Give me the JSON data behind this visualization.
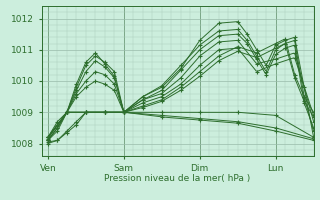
{
  "background_color": "#cceedd",
  "grid_color_minor": "#aaccbb",
  "grid_color_major": "#99bbaa",
  "line_color": "#2d6e2d",
  "xlabel": "Pression niveau de la mer( hPa )",
  "xtick_labels": [
    "Ven",
    "Sam",
    "Dim",
    "Lun"
  ],
  "xtick_positions": [
    0,
    24,
    48,
    72
  ],
  "ylim": [
    1007.6,
    1012.4
  ],
  "ytick_positions": [
    1008,
    1009,
    1010,
    1011,
    1012
  ],
  "xlim": [
    -2,
    84
  ],
  "line_width": 0.7,
  "marker": "+",
  "marker_size": 3.5,
  "lines": [
    {
      "x": [
        0,
        3,
        6,
        9,
        12,
        15,
        18,
        21,
        24,
        30,
        36,
        42,
        48,
        54,
        60,
        63,
        66,
        69,
        72,
        75,
        78,
        81,
        84
      ],
      "y": [
        1008.2,
        1008.6,
        1009.0,
        1009.8,
        1010.5,
        1010.8,
        1010.6,
        1010.3,
        1009.0,
        1009.5,
        1009.8,
        1010.4,
        1011.3,
        1011.85,
        1011.9,
        1011.5,
        1011.0,
        1010.5,
        1011.15,
        1011.3,
        1011.4,
        1009.8,
        1008.2
      ]
    },
    {
      "x": [
        0,
        3,
        6,
        9,
        12,
        15,
        18,
        21,
        24,
        30,
        36,
        42,
        48,
        54,
        60,
        63,
        66,
        69,
        72,
        75,
        78,
        81,
        84
      ],
      "y": [
        1008.2,
        1008.7,
        1009.0,
        1009.9,
        1010.6,
        1010.9,
        1010.55,
        1010.15,
        1009.0,
        1009.5,
        1009.85,
        1010.5,
        1011.15,
        1011.6,
        1011.65,
        1011.3,
        1010.8,
        1010.3,
        1011.0,
        1011.2,
        1011.3,
        1009.5,
        1008.4
      ]
    },
    {
      "x": [
        0,
        3,
        6,
        9,
        12,
        15,
        18,
        21,
        24,
        30,
        36,
        42,
        48,
        54,
        60,
        63,
        66,
        69,
        72,
        75,
        78,
        81,
        84
      ],
      "y": [
        1008.1,
        1008.5,
        1009.0,
        1009.7,
        1010.3,
        1010.65,
        1010.45,
        1010.1,
        1009.0,
        1009.4,
        1009.7,
        1010.35,
        1011.0,
        1011.45,
        1011.5,
        1011.2,
        1010.7,
        1010.2,
        1010.85,
        1011.05,
        1011.15,
        1009.3,
        1008.5
      ]
    },
    {
      "x": [
        0,
        3,
        6,
        9,
        12,
        15,
        18,
        21,
        24,
        30,
        36,
        42,
        48,
        54,
        60,
        66,
        72,
        78,
        84
      ],
      "y": [
        1008.1,
        1008.5,
        1009.0,
        1009.6,
        1010.0,
        1010.3,
        1010.2,
        1009.9,
        1009.0,
        1009.4,
        1009.6,
        1010.1,
        1010.8,
        1011.25,
        1011.3,
        1010.55,
        1010.7,
        1010.9,
        1008.7
      ]
    },
    {
      "x": [
        0,
        3,
        6,
        9,
        12,
        15,
        18,
        21,
        24,
        30,
        36,
        42,
        48,
        54,
        60,
        66,
        72,
        78,
        84
      ],
      "y": [
        1008.1,
        1008.4,
        1009.0,
        1009.5,
        1009.8,
        1010.0,
        1009.9,
        1009.7,
        1009.0,
        1009.3,
        1009.5,
        1009.9,
        1010.5,
        1011.0,
        1011.05,
        1010.3,
        1010.55,
        1010.75,
        1008.9
      ]
    },
    {
      "x": [
        0,
        6,
        12,
        18,
        24,
        36,
        48,
        60,
        72,
        84
      ],
      "y": [
        1008.2,
        1009.0,
        1009.0,
        1009.0,
        1009.0,
        1009.0,
        1009.0,
        1009.0,
        1008.9,
        1008.2
      ]
    },
    {
      "x": [
        0,
        6,
        12,
        18,
        24,
        36,
        48,
        60,
        72,
        84
      ],
      "y": [
        1008.2,
        1009.0,
        1009.0,
        1009.0,
        1009.0,
        1008.9,
        1008.8,
        1008.7,
        1008.5,
        1008.15
      ]
    },
    {
      "x": [
        0,
        6,
        12,
        18,
        24,
        36,
        48,
        60,
        72,
        84
      ],
      "y": [
        1008.15,
        1009.0,
        1009.0,
        1009.0,
        1009.0,
        1008.85,
        1008.75,
        1008.65,
        1008.4,
        1008.1
      ]
    },
    {
      "x": [
        0,
        3,
        6,
        9,
        12,
        18,
        24,
        30,
        36,
        42,
        48,
        54,
        60,
        66,
        72,
        75,
        78,
        81,
        84
      ],
      "y": [
        1008.0,
        1008.1,
        1008.4,
        1008.7,
        1009.0,
        1009.0,
        1009.0,
        1009.2,
        1009.4,
        1009.8,
        1010.3,
        1010.8,
        1011.1,
        1010.9,
        1011.2,
        1011.35,
        1010.2,
        1009.5,
        1009.0
      ]
    },
    {
      "x": [
        0,
        3,
        6,
        9,
        12,
        18,
        24,
        30,
        36,
        42,
        48,
        54,
        60,
        66,
        72,
        75,
        78,
        81,
        84
      ],
      "y": [
        1008.05,
        1008.1,
        1008.35,
        1008.6,
        1009.0,
        1009.0,
        1009.0,
        1009.15,
        1009.35,
        1009.7,
        1010.15,
        1010.65,
        1010.95,
        1010.75,
        1011.05,
        1011.2,
        1010.1,
        1009.35,
        1008.85
      ]
    }
  ]
}
